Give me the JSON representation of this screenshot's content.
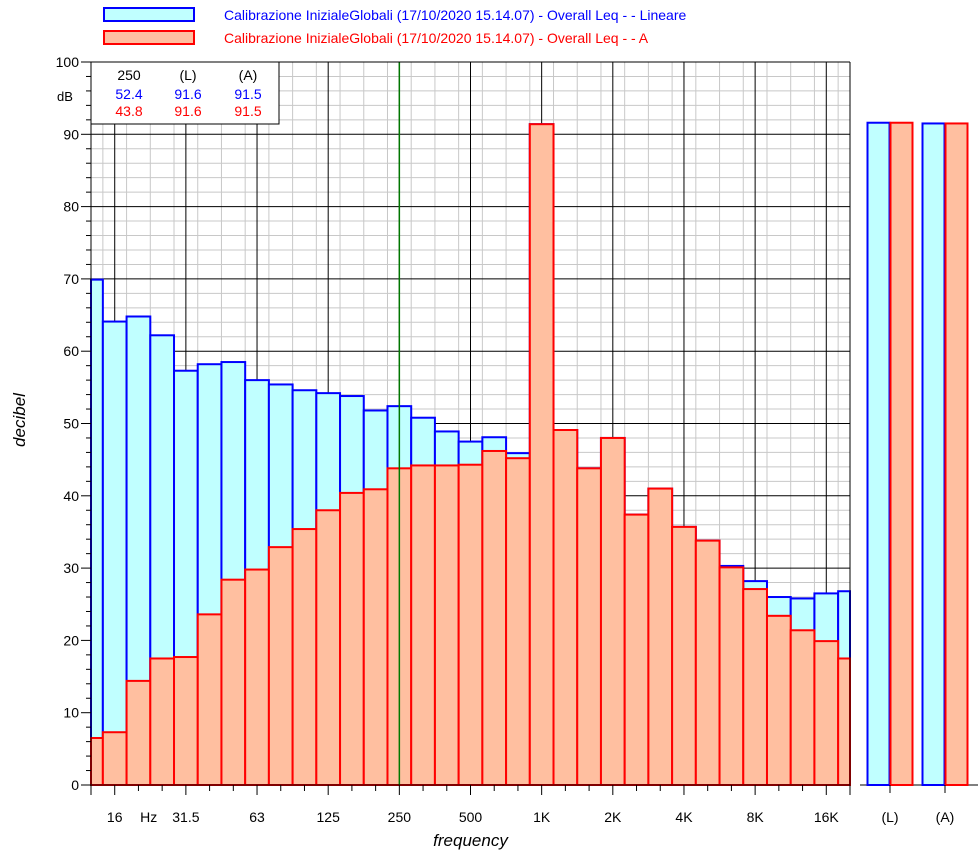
{
  "chart_data": {
    "type": "bar",
    "title": "",
    "xlabel": "frequency",
    "ylabel": "decibel",
    "ylim": [
      0,
      100
    ],
    "y_ticks": [
      0,
      10,
      20,
      30,
      40,
      50,
      60,
      70,
      80,
      90,
      100
    ],
    "x_tick_labels": [
      "16",
      "Hz",
      "31.5",
      "63",
      "125",
      "250",
      "500",
      "1K",
      "2K",
      "4K",
      "8K",
      "16K"
    ],
    "bands": [
      "12.5",
      "16",
      "20",
      "25",
      "31.5",
      "40",
      "50",
      "63",
      "80",
      "100",
      "125",
      "160",
      "200",
      "250",
      "315",
      "400",
      "500",
      "630",
      "800",
      "1K",
      "1.25K",
      "1.6K",
      "2K",
      "2.5K",
      "3.15K",
      "4K",
      "5K",
      "6.3K",
      "8K",
      "10K",
      "12.5K",
      "16K",
      "20K"
    ],
    "series": [
      {
        "name": "Calibrazione InizialeGlobali (17/10/2020 15.14.07) - Overall Leq -  - Lineare",
        "color": "#0000ff",
        "fill": "#c0ffff",
        "values": [
          69.9,
          64.1,
          64.8,
          62.2,
          57.3,
          58.2,
          58.5,
          56.0,
          55.4,
          54.6,
          54.2,
          53.8,
          51.8,
          52.4,
          50.8,
          48.9,
          47.5,
          48.1,
          45.9,
          91.4,
          49.1,
          43.8,
          48.0,
          37.4,
          41.0,
          35.7,
          33.8,
          30.3,
          28.2,
          26.0,
          25.8,
          26.5,
          26.8
        ],
        "overall": {
          "L": 91.6,
          "A": 91.5
        }
      },
      {
        "name": "Calibrazione InizialeGlobali (17/10/2020 15.14.07) - Overall Leq -  - A",
        "color": "#ff0000",
        "fill": "#ffbfa0",
        "values": [
          6.5,
          7.3,
          14.4,
          17.5,
          17.7,
          23.6,
          28.4,
          29.8,
          32.9,
          35.4,
          38.0,
          40.4,
          40.9,
          43.8,
          44.2,
          44.2,
          44.3,
          46.2,
          45.2,
          91.4,
          49.1,
          43.8,
          48.0,
          37.4,
          41.0,
          35.7,
          33.8,
          30.1,
          27.1,
          23.4,
          21.4,
          19.9,
          17.5
        ],
        "overall": {
          "L": 91.6,
          "A": 91.5
        }
      }
    ],
    "overall_categories": [
      "(L)",
      "(A)"
    ],
    "cursor_band": "250",
    "readout": {
      "header": [
        "250",
        "(L)",
        "(A)"
      ],
      "unit": "dB",
      "rows": [
        {
          "color": "#0000ff",
          "values": [
            "52.4",
            "91.6",
            "91.5"
          ]
        },
        {
          "color": "#ff0000",
          "values": [
            "43.8",
            "91.6",
            "91.5"
          ]
        }
      ]
    },
    "grid": true,
    "legend_position": "top"
  }
}
